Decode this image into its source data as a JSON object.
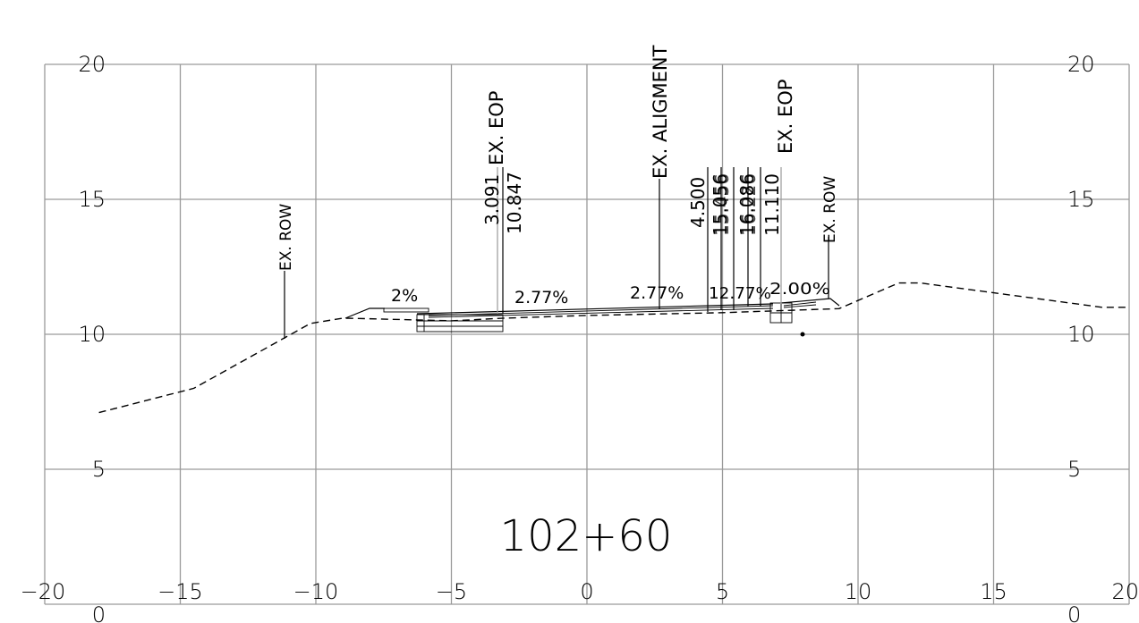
{
  "station": "102+60",
  "axes": {
    "x_ticks": [
      "−20",
      "−15",
      "−10",
      "−5",
      "0",
      "5",
      "10",
      "15",
      "20"
    ],
    "y_ticks_left": [
      "20",
      "15",
      "10",
      "5",
      "0"
    ],
    "y_ticks_right": [
      "20",
      "15",
      "10",
      "5",
      "0"
    ]
  },
  "vertical_labels": {
    "row_left": "EX.  ROW",
    "eop_left": "EX. EOP",
    "alignment": "EX. ALIGMENT",
    "eop_right": "EX. EOP",
    "row_right": "EX.  ROW"
  },
  "offsets": {
    "left_1": "3.091",
    "left_2": "10.847",
    "right_1": "4.500",
    "right_2": "15.056",
    "right_3": "15.456",
    "right_4": "16.086",
    "right_5": "16.226",
    "right_6": "11.110"
  },
  "slopes": {
    "left_shoulder": "2%",
    "left_lane": "2.77%",
    "right_lane": "2.77%",
    "right_a": "12.77%",
    "right_b": "2.00%"
  },
  "chart_data": {
    "type": "line",
    "title": "102+60",
    "xlabel": "",
    "ylabel": "",
    "xlim": [
      -20,
      20
    ],
    "ylim": [
      0,
      20
    ],
    "grid": true,
    "series": [
      {
        "x": [
          -18,
          -14.5,
          -10.2,
          -9,
          -5,
          -3,
          0,
          5,
          9.3,
          11.5,
          12.3,
          19,
          20
        ],
        "y": [
          7.1,
          8.0,
          10.4,
          10.6,
          10.5,
          10.6,
          10.7,
          10.8,
          10.95,
          11.9,
          11.9,
          11.0,
          11.0
        ]
      },
      {
        "x": [
          -9,
          -8.2,
          -3.2,
          2.7,
          7.2,
          9.0,
          9.2
        ],
        "y": [
          10.55,
          10.95,
          10.8,
          10.97,
          11.2,
          11.3,
          11.0
        ]
      }
    ]
  }
}
